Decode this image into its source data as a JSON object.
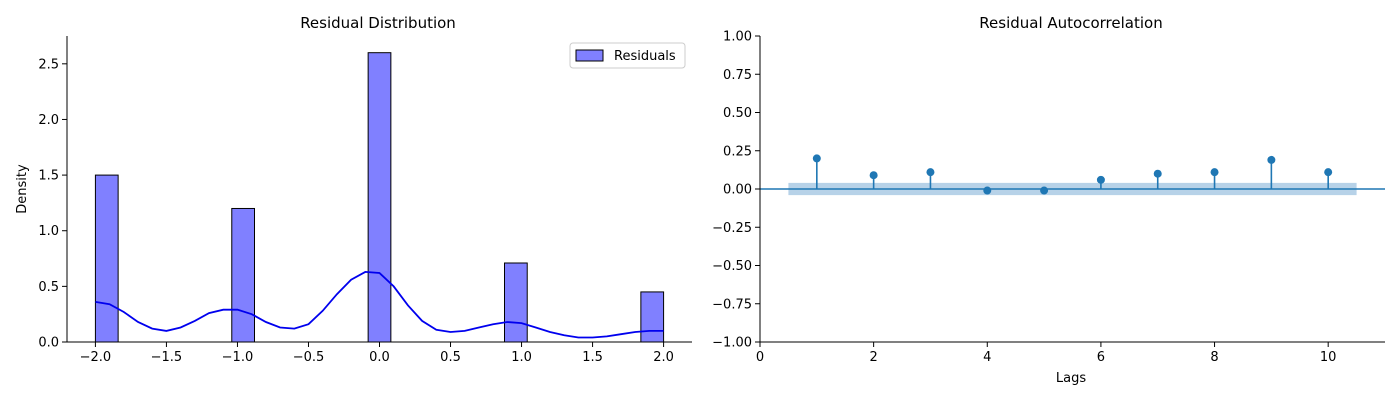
{
  "chart_data": [
    {
      "type": "bar",
      "title": "Residual Distribution",
      "xlabel": "",
      "ylabel": "Density",
      "xlim": [
        -2.2,
        2.2
      ],
      "ylim": [
        0,
        2.75
      ],
      "x_ticks": [
        -2.0,
        -1.5,
        -1.0,
        -0.5,
        0.0,
        0.5,
        1.0,
        1.5,
        2.0
      ],
      "x_tick_labels": [
        "−2.0",
        "−1.5",
        "−1.0",
        "−0.5",
        "0.0",
        "0.5",
        "1.0",
        "1.5",
        "2.0"
      ],
      "y_ticks": [
        0.0,
        0.5,
        1.0,
        1.5,
        2.0,
        2.5
      ],
      "y_tick_labels": [
        "0.0",
        "0.5",
        "1.0",
        "1.5",
        "2.0",
        "2.5"
      ],
      "bar_width": 0.16,
      "bars": [
        {
          "x": -1.92,
          "value": 1.5
        },
        {
          "x": -0.96,
          "value": 1.2
        },
        {
          "x": 0.0,
          "value": 2.6
        },
        {
          "x": 0.96,
          "value": 0.71
        },
        {
          "x": 1.92,
          "value": 0.45
        }
      ],
      "bar_color": "#8080ff",
      "bar_edge_color": "#000000",
      "kde": {
        "color": "#0000ee",
        "x": [
          -2.0,
          -1.9,
          -1.8,
          -1.7,
          -1.6,
          -1.5,
          -1.4,
          -1.3,
          -1.2,
          -1.1,
          -1.0,
          -0.9,
          -0.8,
          -0.7,
          -0.6,
          -0.5,
          -0.4,
          -0.3,
          -0.2,
          -0.1,
          0.0,
          0.1,
          0.2,
          0.3,
          0.4,
          0.5,
          0.6,
          0.7,
          0.8,
          0.9,
          1.0,
          1.1,
          1.2,
          1.3,
          1.4,
          1.5,
          1.6,
          1.7,
          1.8,
          1.9,
          2.0
        ],
        "y": [
          0.36,
          0.34,
          0.27,
          0.18,
          0.12,
          0.1,
          0.13,
          0.19,
          0.26,
          0.29,
          0.29,
          0.25,
          0.18,
          0.13,
          0.12,
          0.16,
          0.28,
          0.43,
          0.56,
          0.63,
          0.62,
          0.5,
          0.33,
          0.19,
          0.11,
          0.09,
          0.1,
          0.13,
          0.16,
          0.18,
          0.17,
          0.13,
          0.09,
          0.06,
          0.04,
          0.04,
          0.05,
          0.07,
          0.09,
          0.1,
          0.1
        ]
      },
      "legend": {
        "label": "Residuals",
        "position": "upper-right"
      },
      "grid": false
    },
    {
      "type": "stem",
      "title": "Residual Autocorrelation",
      "xlabel": "Lags",
      "ylabel": "",
      "xlim": [
        0,
        11
      ],
      "ylim": [
        -1.0,
        1.0
      ],
      "x_ticks": [
        0,
        2,
        4,
        6,
        8,
        10
      ],
      "x_tick_labels": [
        "0",
        "2",
        "4",
        "6",
        "8",
        "10"
      ],
      "y_ticks": [
        -1.0,
        -0.75,
        -0.5,
        -0.25,
        0.0,
        0.25,
        0.5,
        0.75,
        1.0
      ],
      "y_tick_labels": [
        "−1.00",
        "−0.75",
        "−0.50",
        "−0.25",
        "0.00",
        "0.25",
        "0.50",
        "0.75",
        "1.00"
      ],
      "lags": [
        1,
        2,
        3,
        4,
        5,
        6,
        7,
        8,
        9,
        10
      ],
      "values": [
        0.2,
        0.09,
        0.11,
        -0.01,
        -0.01,
        0.06,
        0.1,
        0.11,
        0.19,
        0.11
      ],
      "confidence_band": {
        "x_range": [
          0.5,
          10.5
        ],
        "lower": -0.04,
        "upper": 0.04,
        "color": "#b7d2e8"
      },
      "zero_line": true,
      "color": "#1f77b4",
      "grid": false
    }
  ]
}
